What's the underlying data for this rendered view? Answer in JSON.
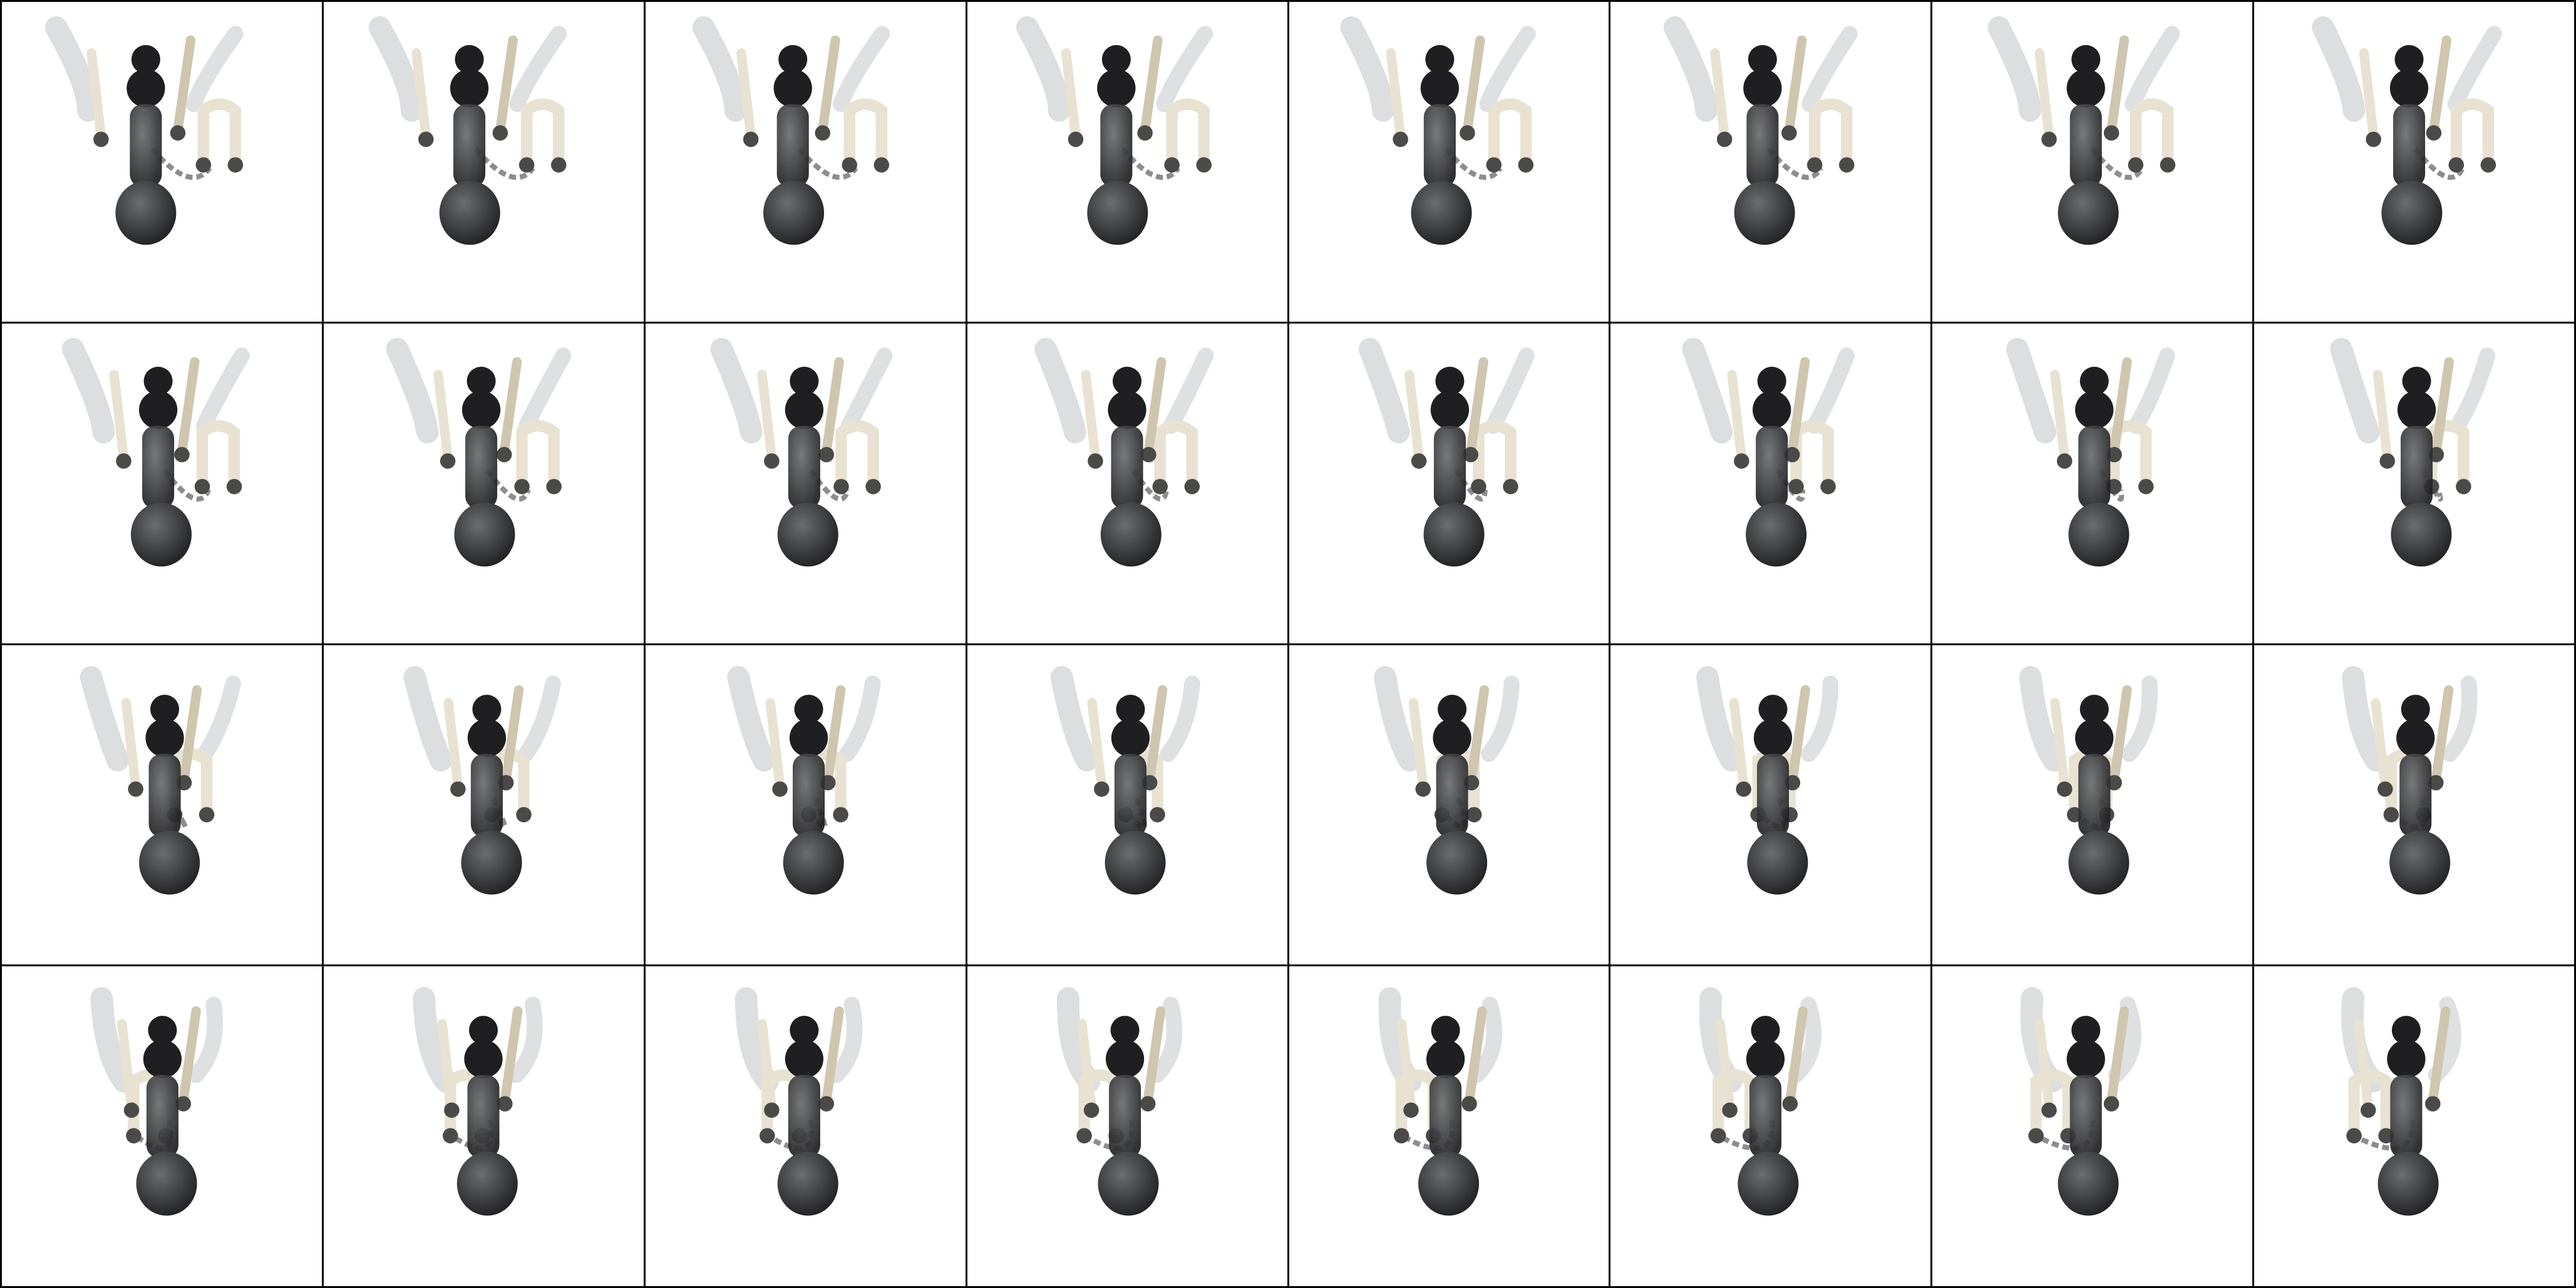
{
  "grid": {
    "rows": 4,
    "cols": 8,
    "background": "#ffffff",
    "border_color": "#000000"
  },
  "object": {
    "body_color": "#1f1f21",
    "body_gradient_light": "#6b6d70",
    "ghost_color": "#c9ccce",
    "limb_color": "#e8e2d2",
    "limb_shade": "#cfc6b0",
    "joint_color": "#4a4a48",
    "chain_color": "#8b8d90"
  },
  "frames": [
    {
      "angle": 0
    },
    {
      "angle": 5
    },
    {
      "angle": 10
    },
    {
      "angle": 15
    },
    {
      "angle": 20
    },
    {
      "angle": 25
    },
    {
      "angle": 30
    },
    {
      "angle": 35
    },
    {
      "angle": 40
    },
    {
      "angle": 45
    },
    {
      "angle": 50
    },
    {
      "angle": 55
    },
    {
      "angle": 60
    },
    {
      "angle": 65
    },
    {
      "angle": 70
    },
    {
      "angle": 75
    },
    {
      "angle": 80
    },
    {
      "angle": 85
    },
    {
      "angle": 90
    },
    {
      "angle": 95
    },
    {
      "angle": 100
    },
    {
      "angle": 105
    },
    {
      "angle": 110
    },
    {
      "angle": 115
    },
    {
      "angle": 120
    },
    {
      "angle": 125
    },
    {
      "angle": 130
    },
    {
      "angle": 135
    },
    {
      "angle": 140
    },
    {
      "angle": 145
    },
    {
      "angle": 150
    },
    {
      "angle": 155
    }
  ]
}
